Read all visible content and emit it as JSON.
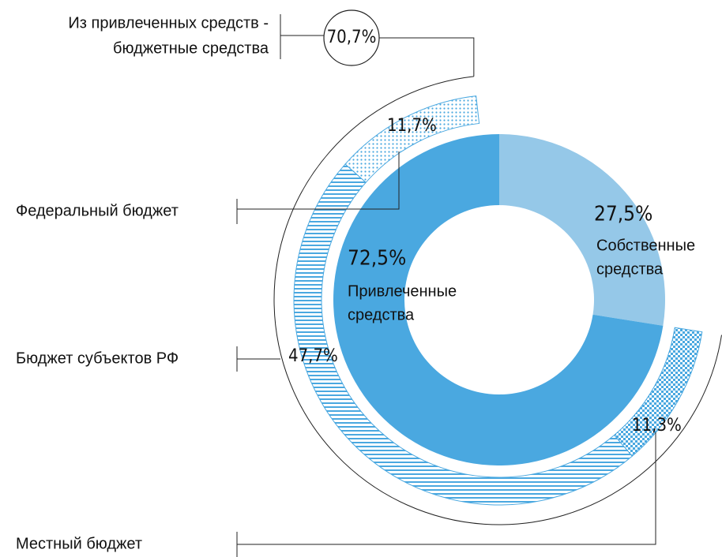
{
  "chart_data": {
    "type": "donut",
    "inner": {
      "categories": [
        [
          "Собственные",
          "средства"
        ],
        [
          "Привлеченные",
          "средства"
        ]
      ],
      "values": [
        27.5,
        72.5
      ],
      "value_labels": [
        "27,5%",
        "72,5%"
      ],
      "colors": [
        "#95c8e8",
        "#4aa8e0"
      ]
    },
    "outer": {
      "categories": [
        "Местный бюджет",
        "Бюджет субъектов РФ",
        "Федеральный бюджет"
      ],
      "values": [
        11.3,
        47.7,
        11.7
      ],
      "value_labels": [
        "11,3%",
        "47,7%",
        "11,7%"
      ],
      "color": "#4aa8e0"
    },
    "annotation": {
      "text": [
        "Из привлеченных средств -",
        "бюджетные средства"
      ],
      "value": 70.7,
      "value_label": "70,7%"
    }
  }
}
